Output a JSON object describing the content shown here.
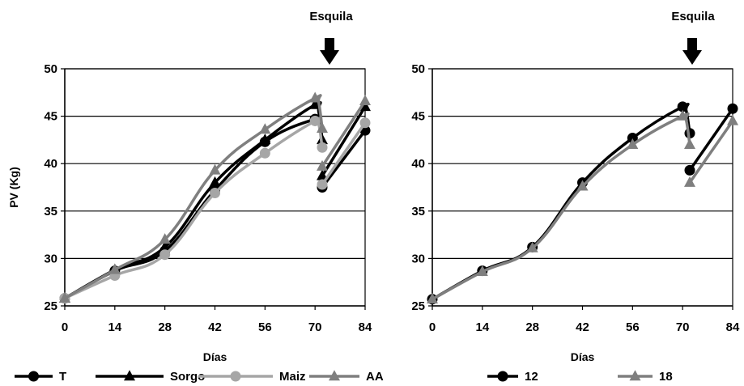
{
  "chart_data": [
    {
      "type": "line",
      "annotation": "Esquila",
      "xlabel": "Días",
      "ylabel": "PV (Kg)",
      "xticks": [
        "0",
        "14",
        "28",
        "42",
        "56",
        "70",
        "84"
      ],
      "yticks": [
        "25",
        "30",
        "35",
        "40",
        "45",
        "50"
      ],
      "xlim": [
        0,
        84
      ],
      "ylim": [
        25,
        50
      ],
      "grid": "horizontal",
      "legend": "bottom",
      "series": [
        {
          "name": "T",
          "color": "#000000",
          "marker": "circle",
          "segments": [
            [
              [
                0,
                25.8
              ],
              [
                14,
                28.7
              ],
              [
                28,
                30.8
              ],
              [
                42,
                37.2
              ],
              [
                56,
                42.3
              ],
              [
                70,
                44.7
              ],
              [
                71,
                44.3
              ]
            ],
            [
              [
                72,
                37.5
              ],
              [
                84,
                43.5
              ]
            ]
          ]
        },
        {
          "name": "Sorgo",
          "color": "#000000",
          "marker": "triangle",
          "segments": [
            [
              [
                0,
                25.8
              ],
              [
                14,
                28.8
              ],
              [
                28,
                31.2
              ],
              [
                42,
                38.0
              ],
              [
                56,
                42.5
              ],
              [
                70,
                46.2
              ],
              [
                71,
                45.5
              ],
              [
                72,
                42.5
              ]
            ],
            [
              [
                72,
                38.7
              ],
              [
                84,
                46.0
              ]
            ]
          ]
        },
        {
          "name": "Maiz",
          "color": "#a6a6a6",
          "marker": "circle",
          "segments": [
            [
              [
                0,
                25.8
              ],
              [
                14,
                28.2
              ],
              [
                28,
                30.4
              ],
              [
                42,
                36.9
              ],
              [
                56,
                41.1
              ],
              [
                70,
                44.5
              ],
              [
                71,
                44.2
              ],
              [
                72,
                41.7
              ]
            ],
            [
              [
                72,
                37.8
              ],
              [
                84,
                44.3
              ]
            ]
          ]
        },
        {
          "name": "AA",
          "color": "#7f7f7f",
          "marker": "triangle",
          "segments": [
            [
              [
                0,
                25.8
              ],
              [
                14,
                28.8
              ],
              [
                28,
                32.0
              ],
              [
                42,
                39.3
              ],
              [
                56,
                43.6
              ],
              [
                70,
                46.9
              ],
              [
                71,
                46.5
              ],
              [
                72,
                43.7
              ]
            ],
            [
              [
                72,
                39.7
              ],
              [
                84,
                46.6
              ]
            ]
          ]
        }
      ]
    },
    {
      "type": "line",
      "annotation": "Esquila",
      "xlabel": "Días",
      "ylabel": "",
      "xticks": [
        "0",
        "14",
        "28",
        "42",
        "56",
        "70",
        "84"
      ],
      "yticks": [
        "25",
        "30",
        "35",
        "40",
        "45",
        "50"
      ],
      "xlim": [
        0,
        84
      ],
      "ylim": [
        25,
        50
      ],
      "grid": "horizontal",
      "legend": "bottom",
      "series": [
        {
          "name": "12",
          "color": "#000000",
          "marker": "circle",
          "segments": [
            [
              [
                0,
                25.7
              ],
              [
                14,
                28.7
              ],
              [
                28,
                31.2
              ],
              [
                42,
                38.0
              ],
              [
                56,
                42.7
              ],
              [
                70,
                46.0
              ],
              [
                71,
                45.6
              ],
              [
                72,
                43.2
              ]
            ],
            [
              [
                72,
                39.3
              ],
              [
                84,
                45.8
              ]
            ]
          ]
        },
        {
          "name": "18",
          "color": "#7f7f7f",
          "marker": "triangle",
          "segments": [
            [
              [
                0,
                25.7
              ],
              [
                14,
                28.6
              ],
              [
                28,
                31.1
              ],
              [
                42,
                37.6
              ],
              [
                56,
                42.0
              ],
              [
                70,
                45.0
              ],
              [
                71,
                44.6
              ],
              [
                72,
                42.0
              ]
            ],
            [
              [
                72,
                38.0
              ],
              [
                84,
                44.5
              ]
            ]
          ]
        }
      ]
    }
  ]
}
